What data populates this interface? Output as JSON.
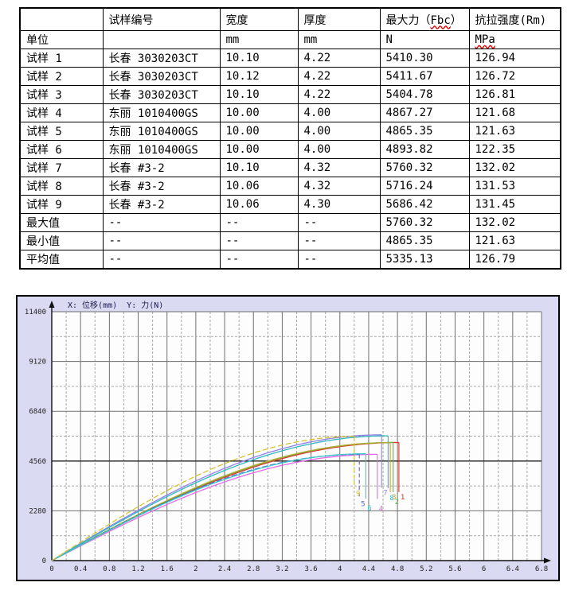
{
  "table": {
    "columns": [
      "",
      "试样编号",
      "宽度",
      "厚度",
      "最大力（Fbc）",
      "抗拉强度(Rm)"
    ],
    "unit_row": [
      "单位",
      "",
      "mm",
      "mm",
      "N",
      "MPa"
    ],
    "rows": [
      [
        "试样 1",
        "长春 3030203CT",
        "10.10",
        "4.22",
        "5410.30",
        "126.94"
      ],
      [
        "试样 2",
        "长春 3030203CT",
        "10.12",
        "4.22",
        "5411.67",
        "126.72"
      ],
      [
        "试样 3",
        "长春 3030203CT",
        "10.10",
        "4.22",
        "5404.78",
        "126.81"
      ],
      [
        "试样 4",
        "东丽 1010400GS",
        "10.00",
        "4.00",
        "4867.27",
        "121.68"
      ],
      [
        "试样 5",
        "东丽 1010400GS",
        "10.00",
        "4.00",
        "4865.35",
        "121.63"
      ],
      [
        "试样 6",
        "东丽 1010400GS",
        "10.00",
        "4.00",
        "4893.82",
        "122.35"
      ],
      [
        "试样 7",
        "长春 #3-2",
        "10.10",
        "4.32",
        "5760.32",
        "132.02"
      ],
      [
        "试样 8",
        "长春 #3-2",
        "10.06",
        "4.32",
        "5716.24",
        "131.53"
      ],
      [
        "试样 9",
        "长春 #3-2",
        "10.06",
        "4.30",
        "5686.42",
        "131.45"
      ],
      [
        "最大值",
        "--",
        "--",
        "--",
        "5760.32",
        "132.02"
      ],
      [
        "最小值",
        "--",
        "--",
        "--",
        "4865.35",
        "121.63"
      ],
      [
        "平均值",
        "--",
        "--",
        "--",
        "5335.13",
        "126.79"
      ]
    ],
    "spellcheck_words": [
      "Fbc",
      "MPa"
    ],
    "spellcheck_color": "#e00000"
  },
  "chart_data": {
    "type": "line",
    "title": "X: 位移(mm)  Y: 力(N)",
    "xlabel": "位移(mm)",
    "ylabel": "力(N)",
    "xlim": [
      0,
      6.8
    ],
    "ylim": [
      0,
      11400
    ],
    "x_major_step": 0.4,
    "x_minor_step": 0.2,
    "y_major_step": 2280,
    "y_minor_step": 1140,
    "x_ticks": [
      "0",
      "0.4",
      "0.8",
      "1.2",
      "1.6",
      "2",
      "2.4",
      "2.8",
      "3.2",
      "3.6",
      "4",
      "4.4",
      "4.8",
      "5.2",
      "5.6",
      "6",
      "6.4",
      "6.8"
    ],
    "y_ticks": [
      "0",
      "2280",
      "4560",
      "6840",
      "9120",
      "11400"
    ],
    "grid": true,
    "legend_position": "none",
    "background": "#dadaf2",
    "plot_background": "#fdfdfd",
    "series": [
      {
        "name": "1",
        "color": "#e03028",
        "peak_force": 5410.3,
        "break_displacement": 4.82,
        "dashed": false
      },
      {
        "name": "2",
        "color": "#55b840",
        "peak_force": 5411.67,
        "break_displacement": 4.74,
        "dashed": false
      },
      {
        "name": "3",
        "color": "#b0b030",
        "peak_force": 5404.78,
        "break_displacement": 4.7,
        "dashed": false
      },
      {
        "name": "4",
        "color": "#e868e8",
        "peak_force": 4867.27,
        "break_displacement": 4.52,
        "dashed": false
      },
      {
        "name": "5",
        "color": "#5868d8",
        "peak_force": 4865.35,
        "break_displacement": 4.27,
        "dashed": true
      },
      {
        "name": "6",
        "color": "#38c8c8",
        "peak_force": 4893.82,
        "break_displacement": 4.36,
        "dashed": false
      },
      {
        "name": "7",
        "color": "#9080e8",
        "peak_force": 5760.32,
        "break_displacement": 4.58,
        "dashed": false
      },
      {
        "name": "8",
        "color": "#30b8c0",
        "peak_force": 5716.24,
        "break_displacement": 4.67,
        "dashed": false
      },
      {
        "name": "9",
        "color": "#d4c434",
        "peak_force": 5686.42,
        "break_displacement": 4.2,
        "dashed": true
      }
    ]
  }
}
